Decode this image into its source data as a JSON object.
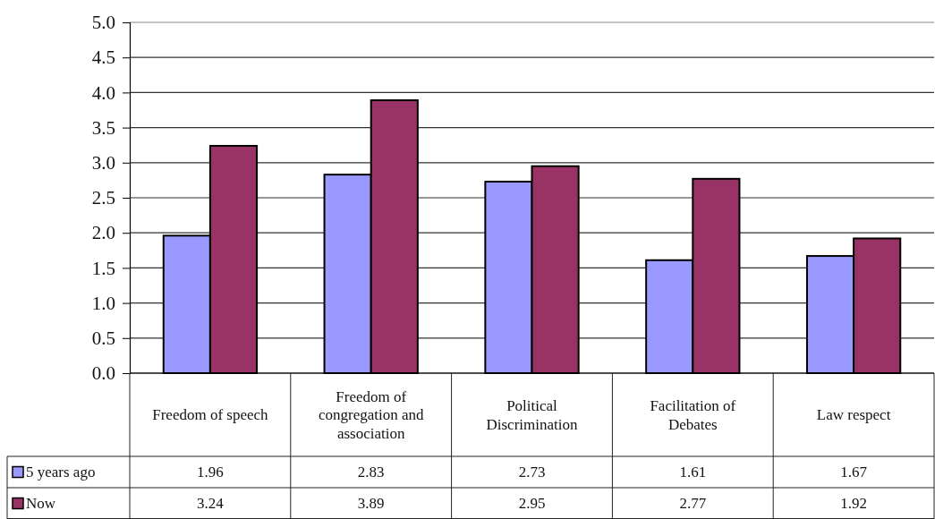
{
  "chart_data": {
    "type": "bar",
    "categories": [
      "Freedom of speech",
      "Freedom of congregation and association",
      "Political Discrimination",
      "Facilitation of Debates",
      "Law respect"
    ],
    "series": [
      {
        "name": "5 years ago",
        "color": "#9999ff",
        "values": [
          1.96,
          2.83,
          2.73,
          1.61,
          1.67
        ]
      },
      {
        "name": "Now",
        "color": "#993366",
        "values": [
          3.24,
          3.89,
          2.95,
          2.77,
          1.92
        ]
      }
    ],
    "ylim": [
      0,
      5
    ],
    "yticks": [
      {
        "value": 0,
        "label": "0.0"
      },
      {
        "value": 0.5,
        "label": "0.5"
      },
      {
        "value": 1,
        "label": "1.0"
      },
      {
        "value": 1.5,
        "label": "1.5"
      },
      {
        "value": 2,
        "label": "2.0"
      },
      {
        "value": 2.5,
        "label": "2.5"
      },
      {
        "value": 3,
        "label": "3.0"
      },
      {
        "value": 3.5,
        "label": "3.5"
      },
      {
        "value": 4,
        "label": "4.0"
      },
      {
        "value": 4.5,
        "label": "4.5"
      },
      {
        "value": 5,
        "label": "5.0"
      }
    ],
    "grid": "y",
    "legend": "bottom",
    "data_labels": true
  }
}
